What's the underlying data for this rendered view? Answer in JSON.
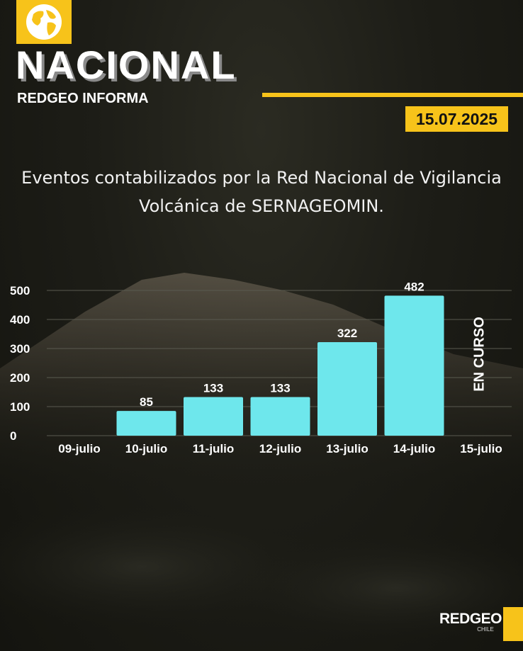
{
  "header": {
    "section": "NACIONAL",
    "subtitle": "REDGEO INFORMA",
    "date": "15.07.2025"
  },
  "description": "Eventos contabilizados por la Red Nacional de Vigilancia Volcánica de SERNAGEOMIN.",
  "chart_data": {
    "type": "bar",
    "categories": [
      "09-julio",
      "10-julio",
      "11-julio",
      "12-julio",
      "13-julio",
      "14-julio",
      "15-julio"
    ],
    "values": [
      null,
      85,
      133,
      133,
      322,
      482,
      null
    ],
    "data_labels": [
      "",
      "85",
      "133",
      "133",
      "322",
      "482",
      ""
    ],
    "yticks": [
      0,
      100,
      200,
      300,
      400,
      500
    ],
    "ylim": [
      0,
      500
    ],
    "grid": true,
    "annotation": {
      "category": "15-julio",
      "text": "EN CURSO"
    },
    "bar_color": "#6ee7ec"
  },
  "brand": {
    "name": "REDGEO",
    "country": "CHILE"
  },
  "colors": {
    "accent": "#f7c31a"
  },
  "icons": {
    "logo": "globe-icon"
  }
}
